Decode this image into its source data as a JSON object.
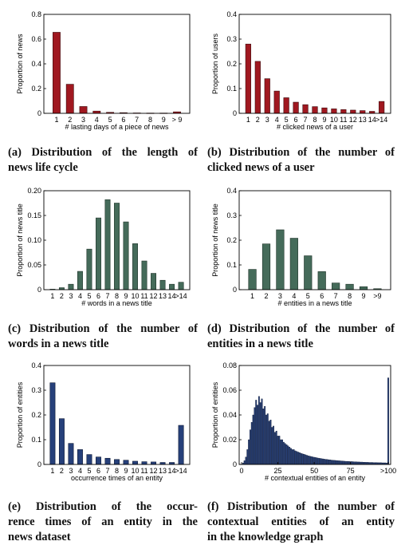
{
  "captions": [
    [
      "(a) Distribution of the length of",
      "news life cycle"
    ],
    [
      "(b) Distribution of the number of",
      "clicked news of a user"
    ],
    [
      "(c) Distribution of the number of",
      "words in a news title"
    ],
    [
      "(d) Distribution of the number of",
      "entities in a news title"
    ],
    [
      "(e) Distribution of the occur-",
      "rence times of an entity in the",
      "news dataset"
    ],
    [
      "(f) Distribution of the number of",
      "contextual entities of an entity",
      "in the knowledge graph"
    ]
  ],
  "colors": {
    "red": "#a01820",
    "green": "#456b5a",
    "blue": "#26407a"
  },
  "chart_data": [
    {
      "type": "bar",
      "xlabel": "# lasting days of a piece of news",
      "ylabel": "Proportion of news",
      "categories": [
        "1",
        "2",
        "3",
        "4",
        "5",
        "6",
        "7",
        "8",
        "9",
        "> 9"
      ],
      "values": [
        0.655,
        0.235,
        0.055,
        0.018,
        0.008,
        0.005,
        0.003,
        0.002,
        0.002,
        0.012
      ],
      "ylim": [
        0,
        0.8
      ],
      "yticks": [
        "0",
        "0.2",
        "0.4",
        "0.6",
        "0.8"
      ],
      "color": "red"
    },
    {
      "type": "bar",
      "xlabel": "# clicked news of a user",
      "ylabel": "Proportion of users",
      "categories": [
        "1",
        "2",
        "3",
        "4",
        "5",
        "6",
        "7",
        "8",
        "9",
        "10",
        "11",
        "12",
        "13",
        "14",
        ">14"
      ],
      "values": [
        0.28,
        0.21,
        0.14,
        0.09,
        0.063,
        0.045,
        0.035,
        0.027,
        0.022,
        0.018,
        0.015,
        0.013,
        0.011,
        0.008,
        0.048
      ],
      "ylim": [
        0,
        0.4
      ],
      "yticks": [
        "0",
        "0.1",
        "0.2",
        "0.3",
        "0.4"
      ],
      "color": "red"
    },
    {
      "type": "bar",
      "xlabel": "# words in a news title",
      "ylabel": "Proportion of news title",
      "categories": [
        "1",
        "2",
        "3",
        "4",
        "5",
        "6",
        "7",
        "8",
        "9",
        "10",
        "11",
        "12",
        "13",
        "14",
        ">14"
      ],
      "values": [
        0.001,
        0.004,
        0.011,
        0.037,
        0.082,
        0.145,
        0.182,
        0.175,
        0.137,
        0.093,
        0.058,
        0.033,
        0.019,
        0.011,
        0.015
      ],
      "ylim": [
        0,
        0.2
      ],
      "yticks": [
        "0",
        "0.05",
        "0.10",
        "0.15",
        "0.20"
      ],
      "color": "green"
    },
    {
      "type": "bar",
      "xlabel": "# entities in a news title",
      "ylabel": "Proportion of news title",
      "categories": [
        "1",
        "2",
        "3",
        "4",
        "5",
        "6",
        "7",
        "8",
        "9",
        ">9"
      ],
      "values": [
        0.082,
        0.185,
        0.242,
        0.208,
        0.137,
        0.073,
        0.027,
        0.022,
        0.012,
        0.004
      ],
      "ylim": [
        0,
        0.4
      ],
      "yticks": [
        "0",
        "0.1",
        "0.2",
        "0.3",
        "0.4"
      ],
      "color": "green"
    },
    {
      "type": "bar",
      "xlabel": "occurrence times of an entity",
      "ylabel": "Proportion of entities",
      "categories": [
        "1",
        "2",
        "3",
        "4",
        "5",
        "6",
        "7",
        "8",
        "9",
        "10",
        "11",
        "12",
        "13",
        "14",
        ">14"
      ],
      "values": [
        0.33,
        0.185,
        0.085,
        0.06,
        0.04,
        0.03,
        0.025,
        0.02,
        0.017,
        0.013,
        0.011,
        0.01,
        0.008,
        0.008,
        0.158
      ],
      "ylim": [
        0,
        0.4
      ],
      "yticks": [
        "0",
        "0.1",
        "0.2",
        "0.3",
        "0.4"
      ],
      "color": "blue"
    },
    {
      "type": "bar",
      "xlabel": "# contextual entities of an entity",
      "ylabel": "Proportion of entities",
      "x_start": 1,
      "x_end": 101,
      "values": [
        0.0012,
        0.003,
        0.006,
        0.012,
        0.02,
        0.028,
        0.034,
        0.04,
        0.046,
        0.052,
        0.048,
        0.055,
        0.05,
        0.053,
        0.045,
        0.047,
        0.04,
        0.041,
        0.035,
        0.036,
        0.03,
        0.031,
        0.026,
        0.027,
        0.023,
        0.023,
        0.02,
        0.02,
        0.018,
        0.017,
        0.016,
        0.015,
        0.014,
        0.013,
        0.012,
        0.012,
        0.011,
        0.0105,
        0.01,
        0.0095,
        0.009,
        0.0086,
        0.0082,
        0.0078,
        0.0074,
        0.007,
        0.0067,
        0.0064,
        0.0061,
        0.0058,
        0.0056,
        0.0053,
        0.0051,
        0.0049,
        0.0047,
        0.0045,
        0.0043,
        0.0041,
        0.004,
        0.0038,
        0.0037,
        0.0035,
        0.0034,
        0.0033,
        0.0032,
        0.0031,
        0.003,
        0.0029,
        0.0028,
        0.0027,
        0.0026,
        0.0025,
        0.0025,
        0.0024,
        0.0023,
        0.0023,
        0.0022,
        0.0021,
        0.0021,
        0.002,
        0.002,
        0.0019,
        0.0019,
        0.0018,
        0.0018,
        0.0017,
        0.0017,
        0.0016,
        0.0016,
        0.0016,
        0.0015,
        0.0015,
        0.0015,
        0.0014,
        0.0014,
        0.0014,
        0.0013,
        0.0013,
        0.0013,
        0.0012,
        0.07
      ],
      "xlim": [
        0,
        101
      ],
      "xticks": [
        {
          "v": 0,
          "label": "0"
        },
        {
          "v": 25,
          "label": "25"
        },
        {
          "v": 50,
          "label": "50"
        },
        {
          "v": 75,
          "label": "75"
        },
        {
          "v": 101,
          "label": ">100"
        }
      ],
      "ylim": [
        0,
        0.08
      ],
      "yticks": [
        "0",
        "0.02",
        "0.04",
        "0.06",
        "0.08"
      ],
      "color": "blue"
    }
  ]
}
